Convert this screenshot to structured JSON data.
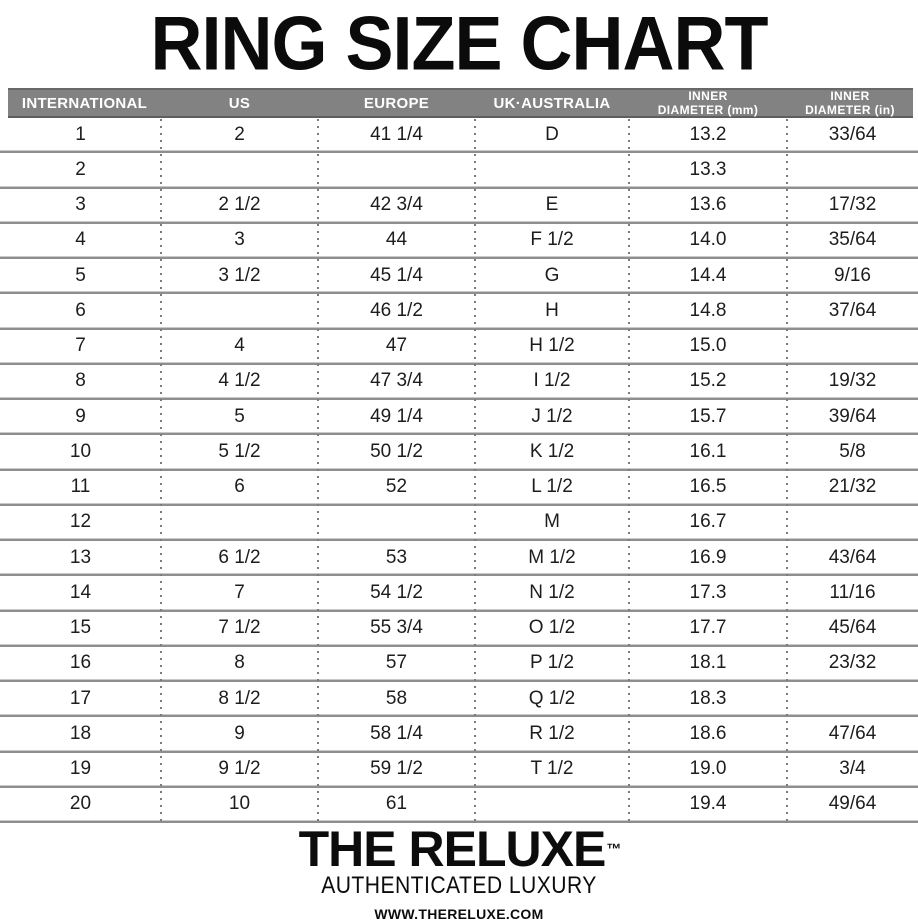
{
  "title": "RING SIZE CHART",
  "chart_data": {
    "type": "table",
    "title": "RING SIZE CHART",
    "columns": [
      "INTERNATIONAL",
      "US",
      "EUROPE",
      "UK·AUSTRALIA",
      "INNER\nDIAMETER (mm)",
      "INNER\nDIAMETER (in)"
    ],
    "rows": [
      [
        "1",
        "2",
        "41 1/4",
        "D",
        "13.2",
        "33/64"
      ],
      [
        "2",
        "",
        "",
        "",
        "13.3",
        ""
      ],
      [
        "3",
        "2 1/2",
        "42 3/4",
        "E",
        "13.6",
        "17/32"
      ],
      [
        "4",
        "3",
        "44",
        "F 1/2",
        "14.0",
        "35/64"
      ],
      [
        "5",
        "3 1/2",
        "45 1/4",
        "G",
        "14.4",
        "9/16"
      ],
      [
        "6",
        "",
        "46 1/2",
        "H",
        "14.8",
        "37/64"
      ],
      [
        "7",
        "4",
        "47",
        "H 1/2",
        "15.0",
        ""
      ],
      [
        "8",
        "4 1/2",
        "47 3/4",
        "I 1/2",
        "15.2",
        "19/32"
      ],
      [
        "9",
        "5",
        "49 1/4",
        "J 1/2",
        "15.7",
        "39/64"
      ],
      [
        "10",
        "5 1/2",
        "50 1/2",
        "K 1/2",
        "16.1",
        "5/8"
      ],
      [
        "11",
        "6",
        "52",
        "L 1/2",
        "16.5",
        "21/32"
      ],
      [
        "12",
        "",
        "",
        "M",
        "16.7",
        ""
      ],
      [
        "13",
        "6 1/2",
        "53",
        "M 1/2",
        "16.9",
        "43/64"
      ],
      [
        "14",
        "7",
        "54 1/2",
        "N 1/2",
        "17.3",
        "11/16"
      ],
      [
        "15",
        "7 1/2",
        "55 3/4",
        "O 1/2",
        "17.7",
        "45/64"
      ],
      [
        "16",
        "8",
        "57",
        "P 1/2",
        "18.1",
        "23/32"
      ],
      [
        "17",
        "8 1/2",
        "58",
        "Q 1/2",
        "18.3",
        ""
      ],
      [
        "18",
        "9",
        "58 1/4",
        "R 1/2",
        "18.6",
        "47/64"
      ],
      [
        "19",
        "9 1/2",
        "59 1/2",
        "T 1/2",
        "19.0",
        "3/4"
      ],
      [
        "20",
        "10",
        "61",
        "",
        "19.4",
        "49/64"
      ]
    ]
  },
  "footer": {
    "brand": "THE RELUXE",
    "trademark": "™",
    "tagline": "AUTHENTICATED LUXURY",
    "website": "WWW.THERELUXE.COM"
  },
  "colors": {
    "header_bg": "#828282",
    "header_text": "#ffffff",
    "divider_dark": "#8e8e8e",
    "divider_light": "#c9c9c9",
    "dotted_separator": "#7c7c7c",
    "text": "#1d1d1d"
  }
}
